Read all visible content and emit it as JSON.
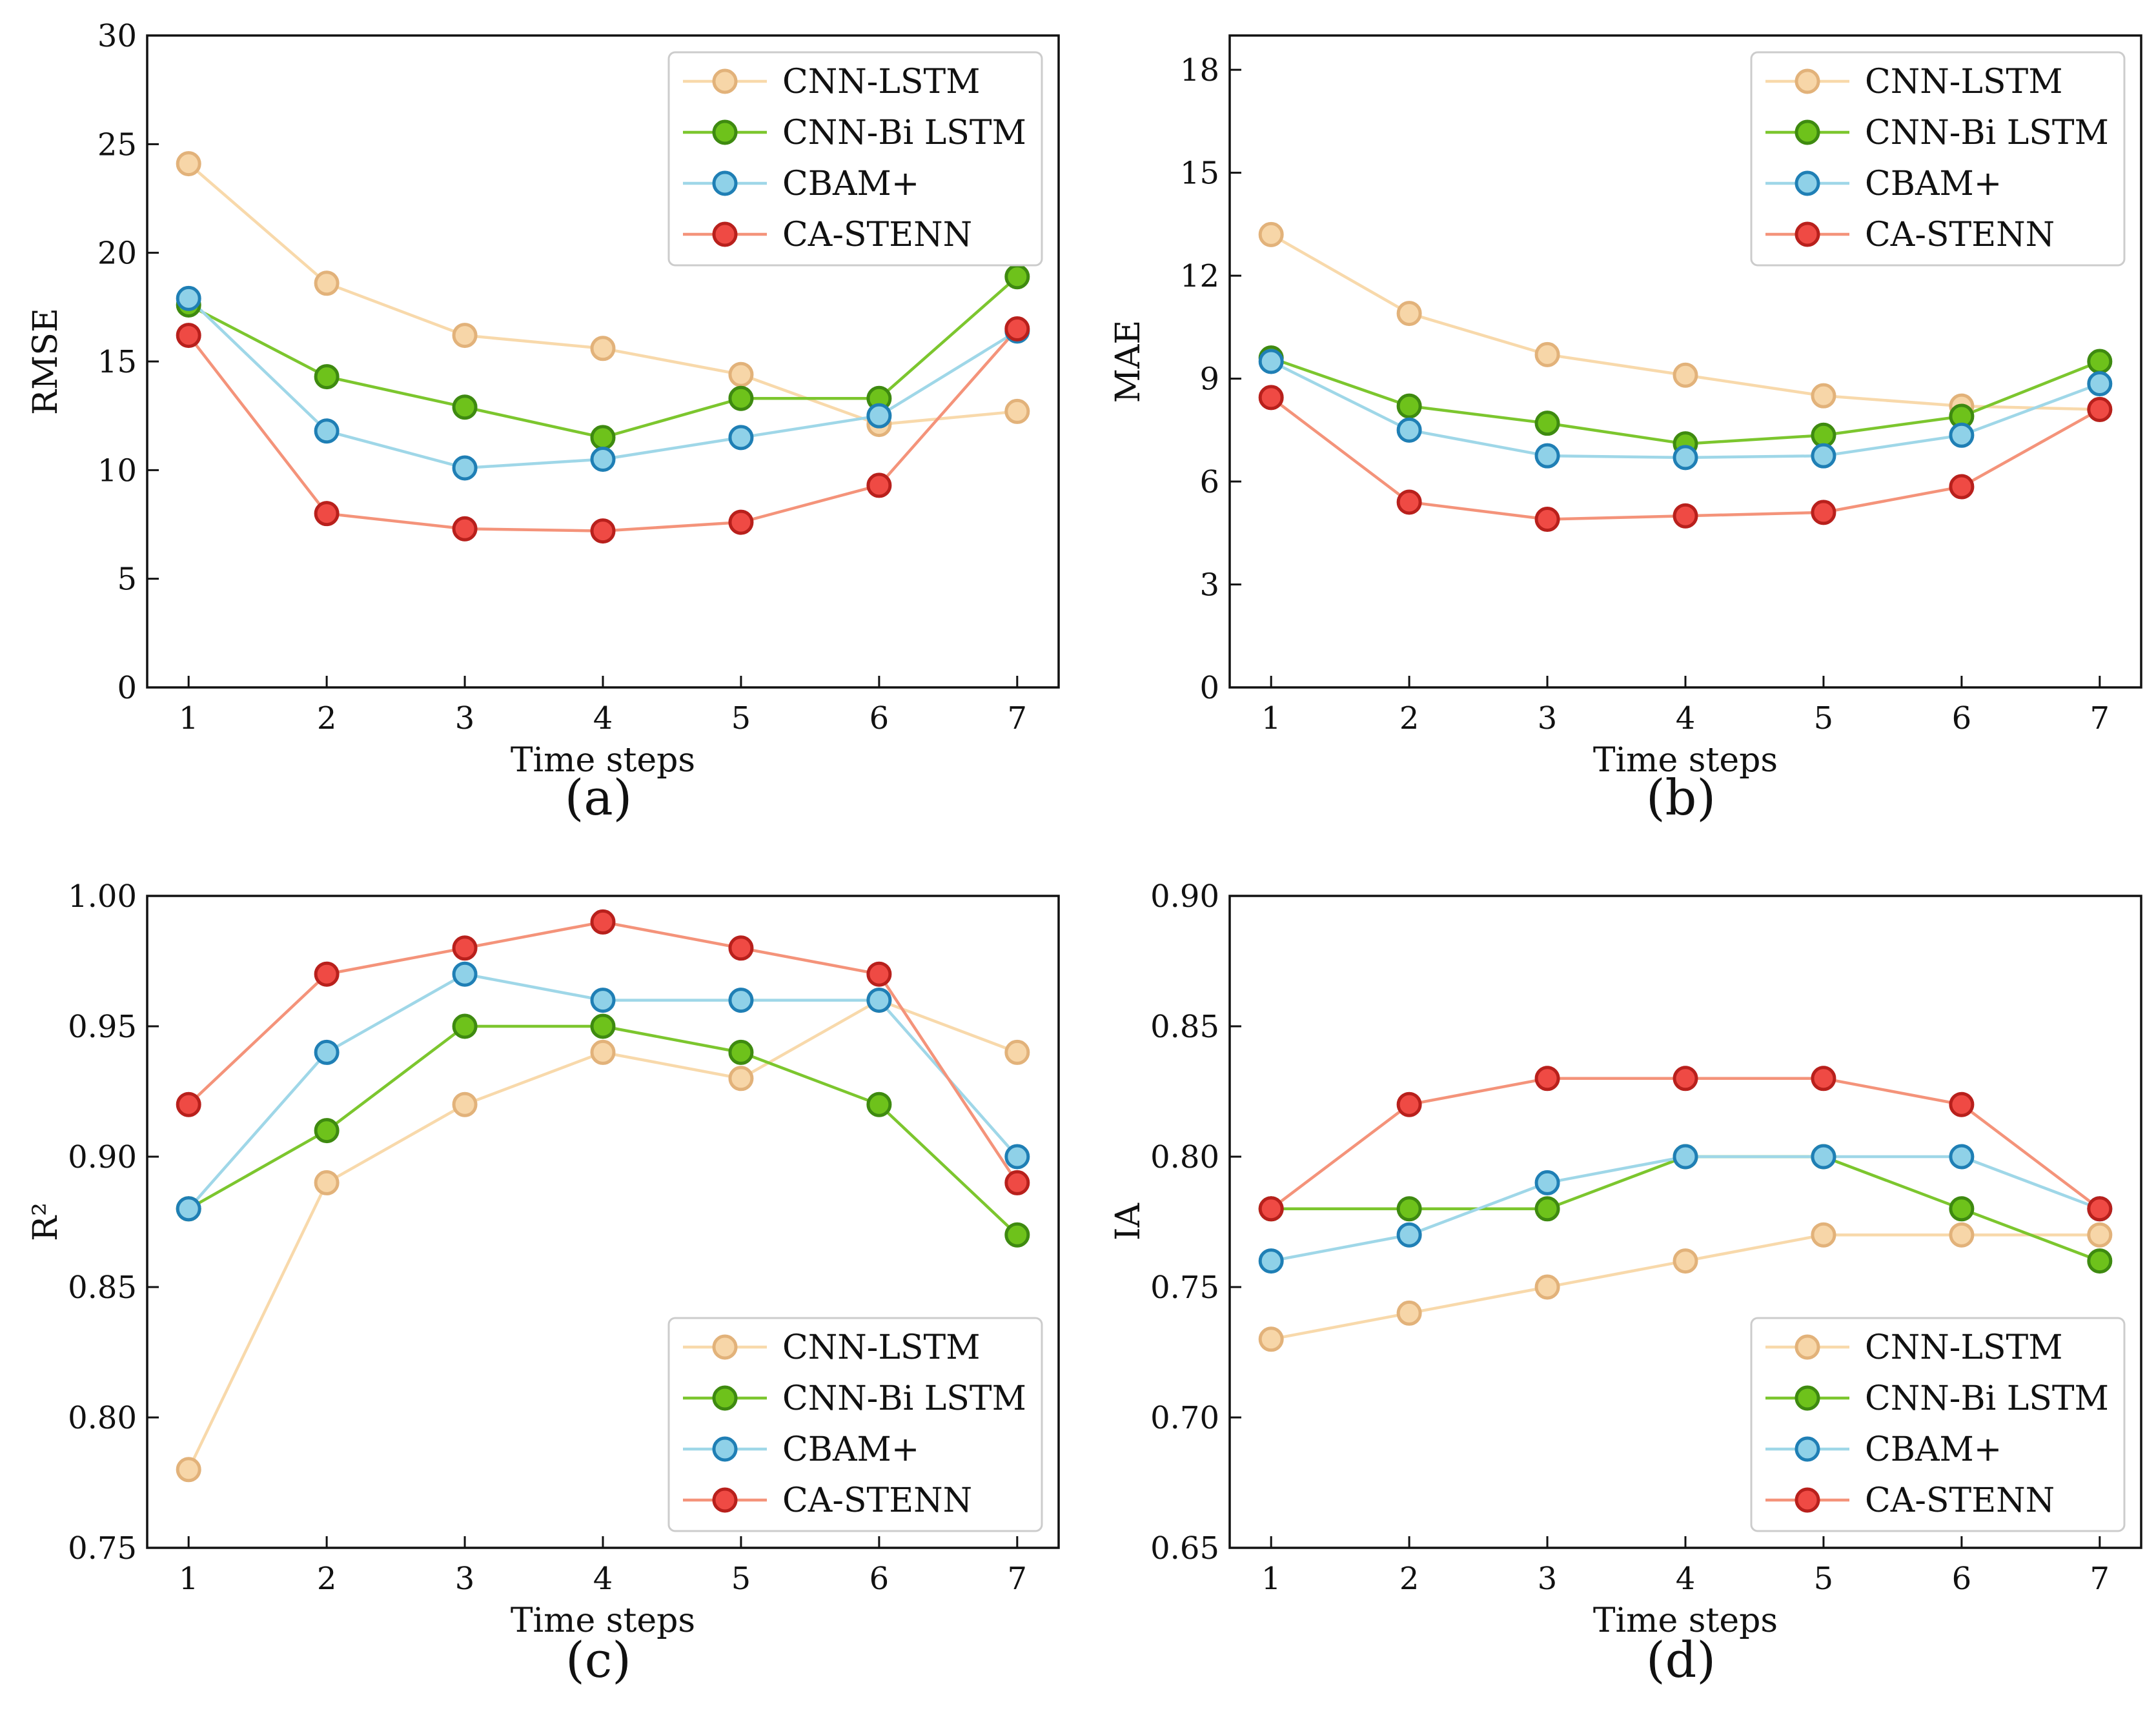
{
  "figure": {
    "colors": {
      "CNN-LSTM": {
        "line": "#f8d9ab",
        "fill": "#f7d6a8",
        "edge": "#e2b27a"
      },
      "CNN-Bi LSTM": {
        "line": "#7cc62e",
        "fill": "#6ec21b",
        "edge": "#3e8a10"
      },
      "CBAM+": {
        "line": "#9fd7e8",
        "fill": "#8fd1e8",
        "edge": "#1f7fb5"
      },
      "CA-STENN": {
        "line": "#f4937a",
        "fill": "#ef4a44",
        "edge": "#b8201c"
      }
    }
  },
  "chart_data": [
    {
      "type": "line",
      "panel": "(a)",
      "xlabel": "Time steps",
      "ylabel": "RMSE",
      "x": [
        1,
        2,
        3,
        4,
        5,
        6,
        7
      ],
      "xlim": [
        0.7,
        7.3
      ],
      "ylim": [
        0,
        30
      ],
      "yticks": [
        0,
        5,
        10,
        15,
        20,
        25,
        30
      ],
      "ytick_labels": [
        "0",
        "5",
        "10",
        "15",
        "20",
        "25",
        "30"
      ],
      "legend_loc": "upper-right",
      "series": [
        {
          "name": "CNN-LSTM",
          "values": [
            24.1,
            18.6,
            16.2,
            15.6,
            14.4,
            12.1,
            12.7
          ]
        },
        {
          "name": "CNN-Bi LSTM",
          "values": [
            17.6,
            14.3,
            12.9,
            11.5,
            13.3,
            13.3,
            18.9
          ]
        },
        {
          "name": "CBAM+",
          "values": [
            17.9,
            11.8,
            10.1,
            10.5,
            11.5,
            12.5,
            16.4
          ]
        },
        {
          "name": "CA-STENN",
          "values": [
            16.2,
            8.0,
            7.3,
            7.2,
            7.6,
            9.3,
            16.5
          ]
        }
      ]
    },
    {
      "type": "line",
      "panel": "(b)",
      "xlabel": "Time steps",
      "ylabel": "MAE",
      "x": [
        1,
        2,
        3,
        4,
        5,
        6,
        7
      ],
      "xlim": [
        0.7,
        7.3
      ],
      "ylim": [
        0,
        19
      ],
      "yticks": [
        0,
        3,
        6,
        9,
        12,
        15,
        18
      ],
      "ytick_labels": [
        "0",
        "3",
        "6",
        "9",
        "12",
        "15",
        "18"
      ],
      "legend_loc": "upper-right",
      "series": [
        {
          "name": "CNN-LSTM",
          "values": [
            13.2,
            10.9,
            9.7,
            9.1,
            8.5,
            8.2,
            8.1
          ]
        },
        {
          "name": "CNN-Bi LSTM",
          "values": [
            9.6,
            8.2,
            7.7,
            7.1,
            7.35,
            7.9,
            9.5
          ]
        },
        {
          "name": "CBAM+",
          "values": [
            9.5,
            7.5,
            6.75,
            6.7,
            6.75,
            7.35,
            8.85
          ]
        },
        {
          "name": "CA-STENN",
          "values": [
            8.45,
            5.4,
            4.9,
            5.0,
            5.1,
            5.85,
            8.1
          ]
        }
      ]
    },
    {
      "type": "line",
      "panel": "(c)",
      "xlabel": "Time steps",
      "ylabel": "R²",
      "x": [
        1,
        2,
        3,
        4,
        5,
        6,
        7
      ],
      "xlim": [
        0.7,
        7.3
      ],
      "ylim": [
        0.75,
        1.0
      ],
      "yticks": [
        0.75,
        0.8,
        0.85,
        0.9,
        0.95,
        1.0
      ],
      "ytick_labels": [
        "0.75",
        "0.80",
        "0.85",
        "0.90",
        "0.95",
        "1.00"
      ],
      "legend_loc": "lower-right",
      "series": [
        {
          "name": "CNN-LSTM",
          "values": [
            0.78,
            0.89,
            0.92,
            0.94,
            0.93,
            0.96,
            0.94
          ]
        },
        {
          "name": "CNN-Bi LSTM",
          "values": [
            0.88,
            0.91,
            0.95,
            0.95,
            0.94,
            0.92,
            0.87
          ]
        },
        {
          "name": "CBAM+",
          "values": [
            0.88,
            0.94,
            0.97,
            0.96,
            0.96,
            0.96,
            0.9
          ]
        },
        {
          "name": "CA-STENN",
          "values": [
            0.92,
            0.97,
            0.98,
            0.99,
            0.98,
            0.97,
            0.89
          ]
        }
      ]
    },
    {
      "type": "line",
      "panel": "(d)",
      "xlabel": "Time steps",
      "ylabel": "IA",
      "x": [
        1,
        2,
        3,
        4,
        5,
        6,
        7
      ],
      "xlim": [
        0.7,
        7.3
      ],
      "ylim": [
        0.65,
        0.9
      ],
      "yticks": [
        0.65,
        0.7,
        0.75,
        0.8,
        0.85,
        0.9
      ],
      "ytick_labels": [
        "0.65",
        "0.70",
        "0.75",
        "0.80",
        "0.85",
        "0.90"
      ],
      "legend_loc": "lower-right",
      "series": [
        {
          "name": "CNN-LSTM",
          "values": [
            0.73,
            0.74,
            0.75,
            0.76,
            0.77,
            0.77,
            0.77
          ]
        },
        {
          "name": "CNN-Bi LSTM",
          "values": [
            0.78,
            0.78,
            0.78,
            0.8,
            0.8,
            0.78,
            0.76
          ]
        },
        {
          "name": "CBAM+",
          "values": [
            0.76,
            0.77,
            0.79,
            0.8,
            0.8,
            0.8,
            0.78
          ]
        },
        {
          "name": "CA-STENN",
          "values": [
            0.78,
            0.82,
            0.83,
            0.83,
            0.83,
            0.82,
            0.78
          ]
        }
      ]
    }
  ]
}
